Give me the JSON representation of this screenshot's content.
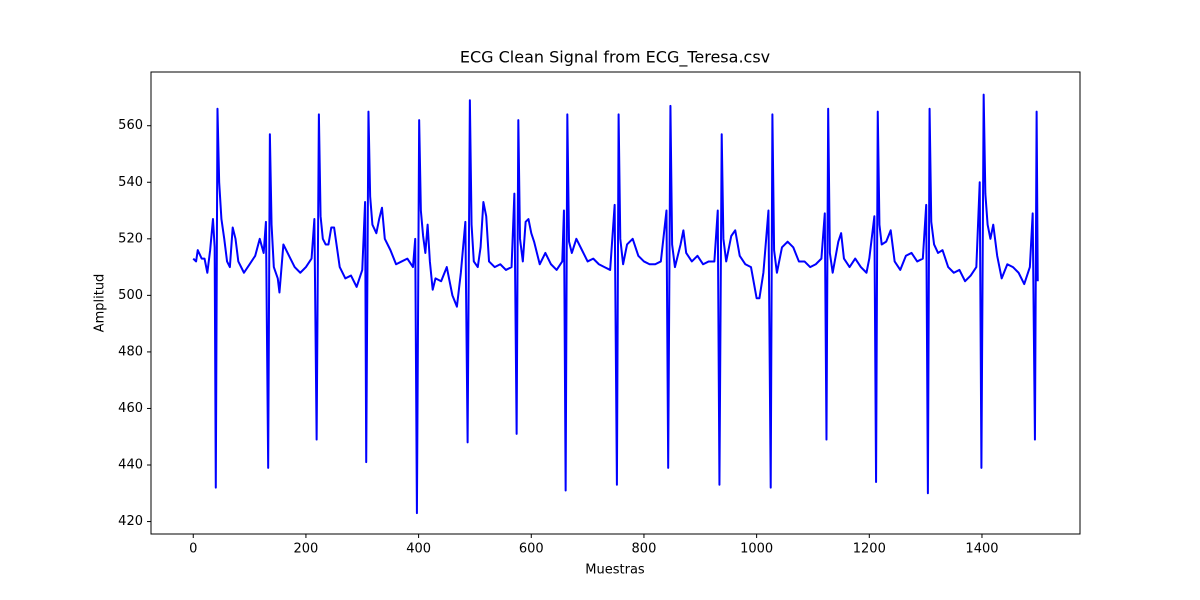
{
  "chart_data": {
    "type": "line",
    "title": "ECG Clean Signal from ECG_Teresa.csv",
    "x_label": "Muestras",
    "y_label": "Amplitud",
    "color": "#0000ff",
    "xlim": [
      -75,
      1574
    ],
    "ylim": [
      415.6,
      579
    ],
    "xticks": [
      0,
      200,
      400,
      600,
      800,
      1000,
      1200,
      1400
    ],
    "yticks": [
      420,
      440,
      460,
      480,
      500,
      520,
      540,
      560
    ],
    "grid": false,
    "x": [
      0,
      5,
      8,
      15,
      20,
      25,
      30,
      35,
      38,
      40,
      43,
      46,
      50,
      55,
      60,
      65,
      70,
      75,
      80,
      90,
      100,
      110,
      118,
      125,
      129,
      133,
      136,
      139,
      143,
      150,
      153,
      160,
      170,
      180,
      190,
      200,
      210,
      215,
      219,
      223,
      226,
      230,
      235,
      240,
      245,
      250,
      260,
      270,
      280,
      290,
      300,
      305,
      307,
      311,
      314,
      318,
      325,
      330,
      335,
      340,
      350,
      360,
      370,
      380,
      390,
      394,
      397,
      401,
      404,
      408,
      412,
      416,
      420,
      425,
      430,
      440,
      450,
      460,
      468,
      475,
      483,
      487,
      491,
      494,
      498,
      505,
      510,
      515,
      520,
      525,
      535,
      545,
      555,
      565,
      570,
      574,
      577,
      580,
      585,
      590,
      595,
      600,
      605,
      615,
      625,
      635,
      645,
      655,
      658,
      661,
      664,
      667,
      672,
      680,
      690,
      700,
      710,
      720,
      730,
      740,
      748,
      752,
      755,
      758,
      763,
      770,
      780,
      790,
      800,
      810,
      820,
      830,
      840,
      843,
      847,
      850,
      855,
      865,
      870,
      875,
      885,
      895,
      905,
      915,
      925,
      931,
      934,
      938,
      941,
      946,
      955,
      962,
      970,
      980,
      990,
      1000,
      1005,
      1012,
      1021,
      1025,
      1028,
      1031,
      1036,
      1045,
      1055,
      1065,
      1075,
      1085,
      1095,
      1105,
      1115,
      1121,
      1124,
      1127,
      1130,
      1135,
      1145,
      1150,
      1155,
      1165,
      1175,
      1185,
      1195,
      1200,
      1209,
      1212,
      1215,
      1218,
      1222,
      1230,
      1238,
      1245,
      1255,
      1265,
      1275,
      1285,
      1295,
      1301,
      1304,
      1307,
      1310,
      1315,
      1322,
      1330,
      1340,
      1350,
      1360,
      1370,
      1380,
      1390,
      1396,
      1399,
      1403,
      1406,
      1410,
      1415,
      1420,
      1427,
      1435,
      1445,
      1455,
      1465,
      1475,
      1485,
      1490,
      1494,
      1497,
      1499
    ],
    "values": [
      513,
      512,
      516,
      513,
      513,
      508,
      516,
      527,
      517,
      432,
      566,
      540,
      527,
      520,
      512,
      510,
      524,
      520,
      512,
      508,
      511,
      514,
      520,
      515,
      526,
      439,
      557,
      525,
      510,
      506,
      501,
      518,
      514,
      510,
      508,
      510,
      513,
      527,
      449,
      564,
      528,
      520,
      518,
      518,
      524,
      524,
      510,
      506,
      507,
      503,
      509,
      533,
      441,
      565,
      535,
      525,
      522,
      527,
      531,
      520,
      516,
      511,
      512,
      513,
      510,
      520,
      423,
      562,
      530,
      521,
      515,
      525,
      512,
      502,
      506,
      505,
      510,
      500,
      496,
      508,
      526,
      448,
      569,
      525,
      512,
      510,
      517,
      533,
      528,
      512,
      510,
      511,
      509,
      510,
      536,
      451,
      562,
      520,
      512,
      526,
      527,
      522,
      519,
      511,
      515,
      511,
      509,
      512,
      530,
      431,
      564,
      519,
      515,
      520,
      516,
      512,
      513,
      511,
      510,
      509,
      532,
      433,
      564,
      520,
      511,
      518,
      520,
      514,
      512,
      511,
      511,
      512,
      530,
      439,
      567,
      518,
      510,
      518,
      523,
      515,
      512,
      514,
      511,
      512,
      512,
      530,
      433,
      557,
      520,
      512,
      521,
      523,
      514,
      511,
      510,
      499,
      499,
      508,
      530,
      432,
      564,
      516,
      508,
      517,
      519,
      517,
      512,
      512,
      510,
      511,
      513,
      529,
      449,
      566,
      515,
      508,
      519,
      522,
      513,
      510,
      513,
      510,
      508,
      513,
      528,
      434,
      565,
      525,
      518,
      519,
      523,
      512,
      509,
      514,
      515,
      512,
      513,
      532,
      430,
      566,
      526,
      518,
      515,
      516,
      510,
      508,
      509,
      505,
      507,
      510,
      540,
      439,
      571,
      536,
      525,
      520,
      525,
      514,
      506,
      511,
      510,
      508,
      504,
      510,
      529,
      449,
      565,
      505
    ]
  }
}
